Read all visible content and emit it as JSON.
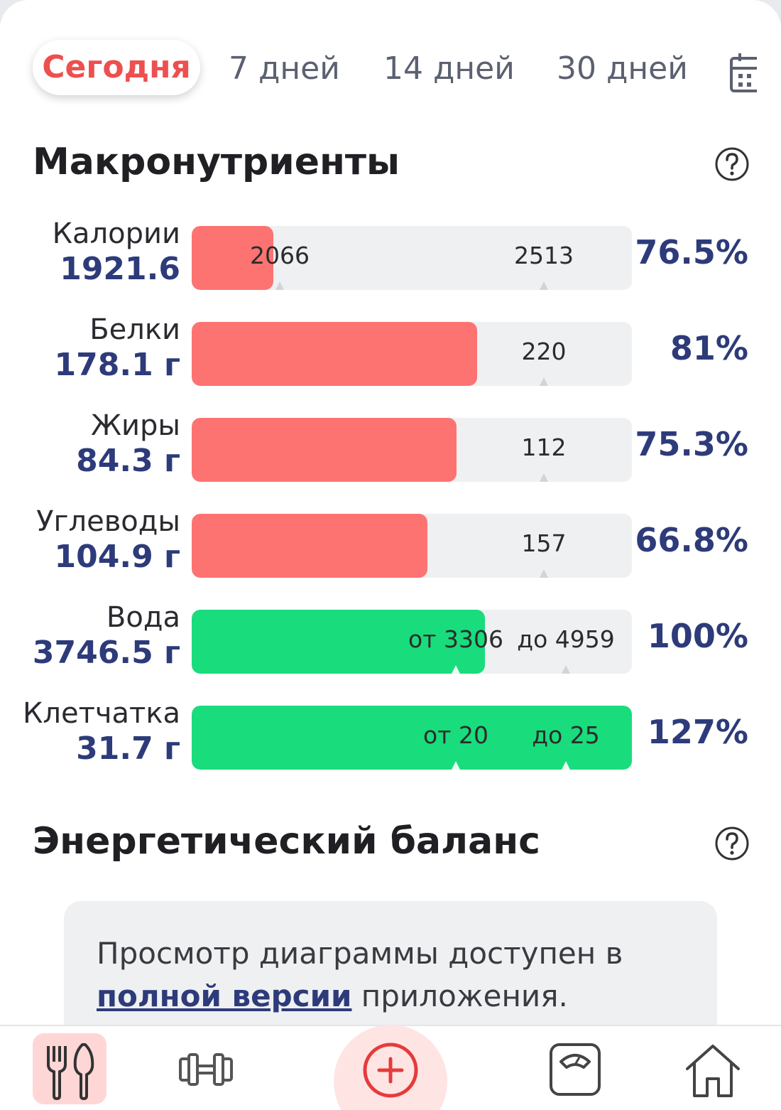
{
  "tabs": {
    "today": "Сегодня",
    "d7": "7 дней",
    "d14": "14 дней",
    "d30": "30 дней"
  },
  "macros": {
    "title": "Макронутриенты",
    "rows": [
      {
        "name": "Калории",
        "value": "1921.6",
        "percent": "76.5%",
        "fill_fraction": 0.185,
        "fill_color": "red",
        "markers": [
          {
            "text": "2066",
            "at": 0.2
          },
          {
            "text": "2513",
            "at": 0.8
          }
        ]
      },
      {
        "name": "Белки",
        "value": "178.1 г",
        "percent": "81%",
        "fill_fraction": 0.648,
        "fill_color": "red",
        "markers": [
          {
            "text": "220",
            "at": 0.8
          }
        ]
      },
      {
        "name": "Жиры",
        "value": "84.3 г",
        "percent": "75.3%",
        "fill_fraction": 0.602,
        "fill_color": "red",
        "markers": [
          {
            "text": "112",
            "at": 0.8
          }
        ]
      },
      {
        "name": "Углеводы",
        "value": "104.9 г",
        "percent": "66.8%",
        "fill_fraction": 0.535,
        "fill_color": "red",
        "markers": [
          {
            "text": "157",
            "at": 0.8
          }
        ]
      },
      {
        "name": "Вода",
        "value": "3746.5 г",
        "percent": "100%",
        "fill_fraction": 0.666,
        "fill_color": "green",
        "markers": [
          {
            "text": "от 3306",
            "at": 0.6
          },
          {
            "text": "до 4959",
            "at": 0.85
          }
        ]
      },
      {
        "name": "Клетчатка",
        "value": "31.7 г",
        "percent": "127%",
        "fill_fraction": 1.0,
        "fill_color": "green",
        "markers": [
          {
            "text": "от 20",
            "at": 0.6
          },
          {
            "text": "до 25",
            "at": 0.85
          }
        ]
      }
    ]
  },
  "energy": {
    "title": "Энергетический баланс",
    "card_text_before": "Просмотр диаграммы доступен в",
    "card_link": "полной версии",
    "card_text_after": " приложения."
  },
  "colors": {
    "accent": "#ee4f4f",
    "bar_red": "#fd7372",
    "bar_green": "#19dc7d",
    "value_blue": "#2d3b7a"
  },
  "nav": [
    "utensils-icon",
    "dumbbell-icon",
    "add-icon",
    "scale-icon",
    "home-icon"
  ]
}
